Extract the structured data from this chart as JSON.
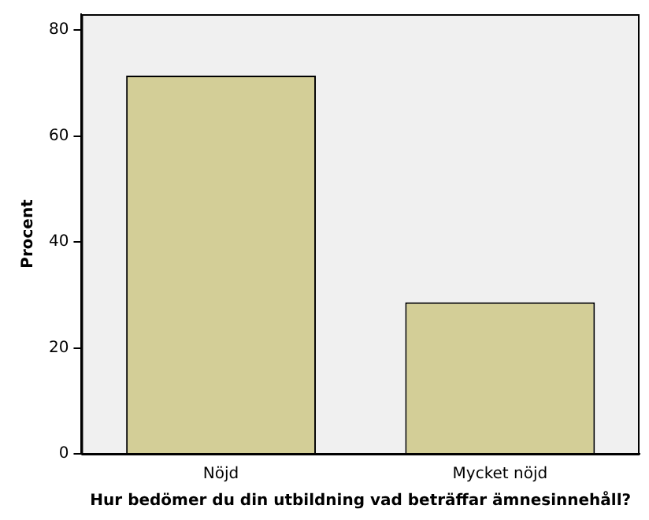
{
  "chart_data": {
    "type": "bar",
    "xlabel": "Hur bedömer du din utbildning vad beträffar ämnesinnehåll?",
    "ylabel": "Procent",
    "categories": [
      "Nöjd",
      "Mycket nöjd"
    ],
    "values": [
      71.4,
      28.6
    ],
    "color": "#d3ce97",
    "ylim": [
      0,
      83
    ],
    "yticks": [
      0,
      20,
      40,
      60,
      80
    ],
    "grid": false,
    "legend": false
  }
}
